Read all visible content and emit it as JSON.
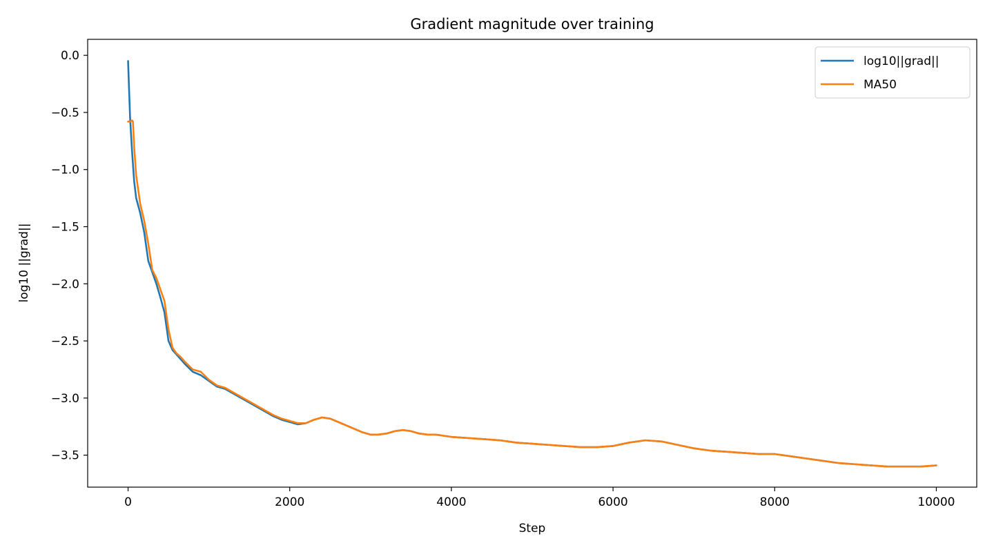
{
  "chart_data": {
    "type": "line",
    "title": "Gradient magnitude over training",
    "xlabel": "Step",
    "ylabel": "log10 ||grad||",
    "xlim": [
      -500,
      10500
    ],
    "ylim": [
      -3.78,
      0.14
    ],
    "xticks": [
      0,
      2000,
      4000,
      6000,
      8000,
      10000
    ],
    "xtick_labels": [
      "0",
      "2000",
      "4000",
      "6000",
      "8000",
      "10000"
    ],
    "yticks": [
      0.0,
      -0.5,
      -1.0,
      -1.5,
      -2.0,
      -2.5,
      -3.0,
      -3.5
    ],
    "ytick_labels": [
      "0.0",
      "−0.5",
      "−1.0",
      "−1.5",
      "−2.0",
      "−2.5",
      "−3.0",
      "−3.5"
    ],
    "grid": false,
    "legend_position": "top-right",
    "series": [
      {
        "name": "log10||grad||",
        "color": "#1f77b4",
        "x": [
          0,
          25,
          50,
          75,
          100,
          150,
          200,
          250,
          300,
          350,
          400,
          450,
          500,
          550,
          600,
          650,
          700,
          800,
          900,
          1000,
          1100,
          1200,
          1300,
          1400,
          1500,
          1600,
          1700,
          1800,
          1900,
          2000,
          2100,
          2200,
          2300,
          2400,
          2500,
          2600,
          2700,
          2800,
          2900,
          3000,
          3100,
          3200,
          3300,
          3400,
          3500,
          3600,
          3700,
          3800,
          4000,
          4200,
          4400,
          4600,
          4800,
          5000,
          5200,
          5400,
          5600,
          5800,
          6000,
          6200,
          6400,
          6600,
          6800,
          7000,
          7200,
          7400,
          7600,
          7800,
          8000,
          8200,
          8400,
          8600,
          8800,
          9000,
          9200,
          9400,
          9600,
          9800,
          10000
        ],
        "y": [
          -0.05,
          -0.55,
          -0.85,
          -1.1,
          -1.25,
          -1.38,
          -1.55,
          -1.8,
          -1.9,
          -2.0,
          -2.12,
          -2.25,
          -2.5,
          -2.58,
          -2.62,
          -2.66,
          -2.7,
          -2.77,
          -2.8,
          -2.85,
          -2.9,
          -2.92,
          -2.96,
          -3.0,
          -3.04,
          -3.08,
          -3.12,
          -3.16,
          -3.19,
          -3.21,
          -3.23,
          -3.22,
          -3.19,
          -3.17,
          -3.18,
          -3.21,
          -3.24,
          -3.27,
          -3.3,
          -3.32,
          -3.32,
          -3.31,
          -3.29,
          -3.28,
          -3.29,
          -3.31,
          -3.32,
          -3.32,
          -3.34,
          -3.35,
          -3.36,
          -3.37,
          -3.39,
          -3.4,
          -3.41,
          -3.42,
          -3.43,
          -3.43,
          -3.42,
          -3.39,
          -3.37,
          -3.38,
          -3.41,
          -3.44,
          -3.46,
          -3.47,
          -3.48,
          -3.49,
          -3.49,
          -3.51,
          -3.53,
          -3.55,
          -3.57,
          -3.58,
          -3.59,
          -3.6,
          -3.6,
          -3.6,
          -3.59
        ]
      },
      {
        "name": "MA50",
        "color": "#ff7f0e",
        "x": [
          0,
          25,
          50,
          60,
          75,
          100,
          150,
          200,
          250,
          300,
          350,
          400,
          450,
          500,
          550,
          600,
          650,
          700,
          800,
          900,
          1000,
          1100,
          1200,
          1300,
          1400,
          1500,
          1600,
          1700,
          1800,
          1900,
          2000,
          2100,
          2200,
          2300,
          2400,
          2500,
          2600,
          2700,
          2800,
          2900,
          3000,
          3100,
          3200,
          3300,
          3400,
          3500,
          3600,
          3700,
          3800,
          4000,
          4200,
          4400,
          4600,
          4800,
          5000,
          5200,
          5400,
          5600,
          5800,
          6000,
          6200,
          6400,
          6600,
          6800,
          7000,
          7200,
          7400,
          7600,
          7800,
          8000,
          8200,
          8400,
          8600,
          8800,
          9000,
          9200,
          9400,
          9600,
          9800,
          10000
        ],
        "y": [
          -0.58,
          -0.58,
          -0.57,
          -0.58,
          -0.8,
          -1.05,
          -1.3,
          -1.45,
          -1.65,
          -1.88,
          -1.95,
          -2.05,
          -2.15,
          -2.4,
          -2.56,
          -2.61,
          -2.64,
          -2.68,
          -2.75,
          -2.77,
          -2.84,
          -2.89,
          -2.91,
          -2.95,
          -2.99,
          -3.03,
          -3.07,
          -3.11,
          -3.15,
          -3.18,
          -3.2,
          -3.22,
          -3.22,
          -3.19,
          -3.17,
          -3.18,
          -3.21,
          -3.24,
          -3.27,
          -3.3,
          -3.32,
          -3.32,
          -3.31,
          -3.29,
          -3.28,
          -3.29,
          -3.31,
          -3.32,
          -3.32,
          -3.34,
          -3.35,
          -3.36,
          -3.37,
          -3.39,
          -3.4,
          -3.41,
          -3.42,
          -3.43,
          -3.43,
          -3.42,
          -3.39,
          -3.37,
          -3.38,
          -3.41,
          -3.44,
          -3.46,
          -3.47,
          -3.48,
          -3.49,
          -3.49,
          -3.51,
          -3.53,
          -3.55,
          -3.57,
          -3.58,
          -3.59,
          -3.6,
          -3.6,
          -3.6,
          -3.59
        ]
      }
    ]
  }
}
